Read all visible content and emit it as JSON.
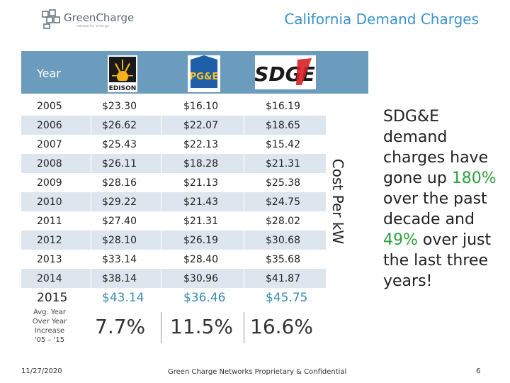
{
  "brand": {
    "name": "GreenCharge",
    "tagline": "networks energy"
  },
  "slide": {
    "title": "California Demand Charges"
  },
  "table": {
    "header_label": "Year",
    "utilities": [
      {
        "name": "EDISON",
        "icon": "edison-logo"
      },
      {
        "name": "PG&E",
        "icon": "pge-logo"
      },
      {
        "name": "SDGE",
        "icon": "sdge-logo"
      }
    ],
    "rows": [
      [
        "2005",
        "$23.30",
        "$16.10",
        "$16.19"
      ],
      [
        "2006",
        "$26.62",
        "$22.07",
        "$18.65"
      ],
      [
        "2007",
        "$25.43",
        "$22.13",
        "$15.42"
      ],
      [
        "2008",
        "$26.11",
        "$18.28",
        "$21.31"
      ],
      [
        "2009",
        "$28.16",
        "$21.13",
        "$25.38"
      ],
      [
        "2010",
        "$29.22",
        "$21.43",
        "$24.75"
      ],
      [
        "2011",
        "$27.40",
        "$21.31",
        "$28.02"
      ],
      [
        "2012",
        "$28.10",
        "$26.19",
        "$30.68"
      ],
      [
        "2013",
        "$33.14",
        "$28.40",
        "$35.68"
      ],
      [
        "2014",
        "$38.14",
        "$30.96",
        "$41.87"
      ],
      [
        "2015",
        "$43.14",
        "$36.46",
        "$45.75"
      ]
    ],
    "avg_label": "Avg. Year\nOver Year\nIncrease\n'05 – '15",
    "avg_values": [
      "7.7%",
      "11.5%",
      "16.6%"
    ],
    "axis_label": "Cost Per kW"
  },
  "callout": {
    "part1": "SDG&E demand charges have gone up ",
    "highlight1": "180%",
    "part2": " over the past decade and ",
    "highlight2": "49%",
    "part3": " over just the last three years!"
  },
  "footer": {
    "date": "11/27/2020",
    "center": "Green Charge Networks Proprietary & Confidential",
    "page": "6"
  },
  "colors": {
    "header": "#6b9bbd",
    "row_alt": "#dde6ee",
    "title": "#3a93c9",
    "highlight": "#2aa23c"
  }
}
